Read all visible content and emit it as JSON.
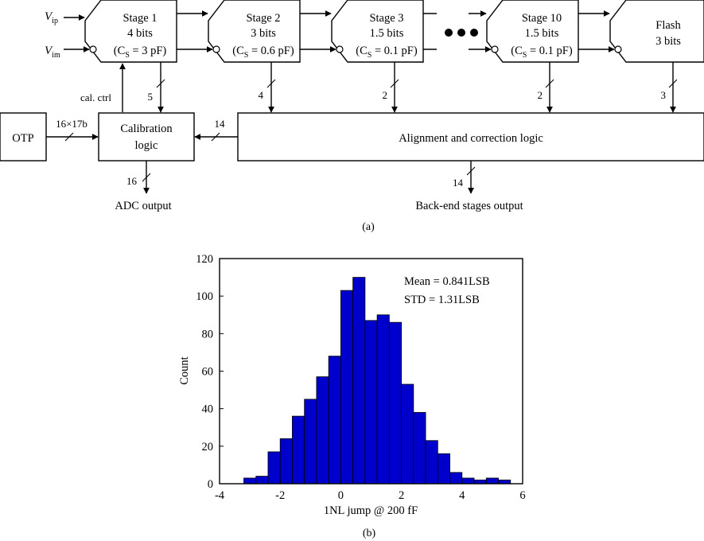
{
  "diagram": {
    "inputs": {
      "vip_base": "V",
      "vip_sub": "ip",
      "vim_base": "V",
      "vim_sub": "im"
    },
    "stages": [
      {
        "name": "Stage 1",
        "bits": "4 bits",
        "cs_base": "(C",
        "cs_sub": "S",
        "cs_val": " = 3 pF)"
      },
      {
        "name": "Stage 2",
        "bits": "3 bits",
        "cs_base": "(C",
        "cs_sub": "S",
        "cs_val": " = 0.6 pF)"
      },
      {
        "name": "Stage 3",
        "bits": "1.5 bits",
        "cs_base": "(C",
        "cs_sub": "S",
        "cs_val": " = 0.1 pF)"
      },
      {
        "name": "Stage 10",
        "bits": "1.5 bits",
        "cs_base": "(C",
        "cs_sub": "S",
        "cs_val": " = 0.1 pF)"
      }
    ],
    "flash": {
      "name": "Flash",
      "bits": "3 bits"
    },
    "bus_widths": {
      "s1": "5",
      "s2": "4",
      "s3": "2",
      "s10": "2",
      "flash": "3",
      "align_to_cal": "14",
      "otp": "16×17b",
      "adc_out": "16",
      "backend_out": "14"
    },
    "otp_label": "OTP",
    "calibration_label_1": "Calibration",
    "calibration_label_2": "logic",
    "alignment_label": "Alignment and correction logic",
    "cal_ctrl": "cal. ctrl",
    "adc_output": "ADC output",
    "backend_output": "Back-end stages output",
    "caption": "(a)"
  },
  "histogram": {
    "caption": "(b)",
    "stats": [
      "Mean = 0.841LSB",
      "STD = 1.31LSB"
    ],
    "bar_color": "#0000cc"
  },
  "chart_data": {
    "type": "bar",
    "title": "",
    "xlabel": "1NL jump @ 200 fF",
    "ylabel": "Count",
    "xlim": [
      -4,
      6
    ],
    "ylim": [
      0,
      120
    ],
    "xticks": [
      "-4",
      "-2",
      "0",
      "2",
      "4",
      "6"
    ],
    "yticks": [
      "0",
      "20",
      "40",
      "60",
      "80",
      "100",
      "120"
    ],
    "bin_width": 0.4,
    "bin_centers": [
      -3.0,
      -2.6,
      -2.2,
      -1.8,
      -1.4,
      -1.0,
      -0.6,
      -0.2,
      0.2,
      0.6,
      1.0,
      1.4,
      1.8,
      2.2,
      2.6,
      3.0,
      3.4,
      3.8,
      4.2,
      4.6,
      5.0,
      5.4
    ],
    "values": [
      3,
      4,
      17,
      24,
      36,
      45,
      57,
      68,
      103,
      110,
      87,
      90,
      86,
      53,
      38,
      23,
      16,
      6,
      3,
      2,
      3,
      2
    ]
  }
}
